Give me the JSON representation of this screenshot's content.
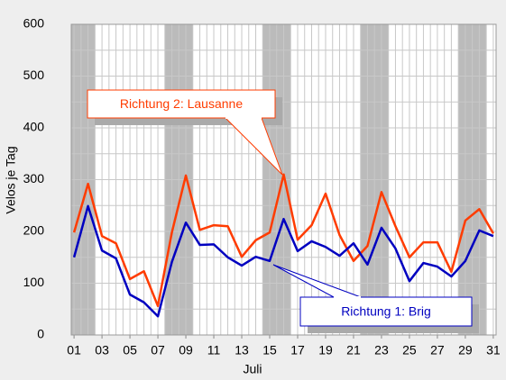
{
  "chart_data": {
    "type": "line",
    "x_label": "Juli",
    "y_label": "Velos je Tag",
    "x": [
      1,
      2,
      3,
      4,
      5,
      6,
      7,
      8,
      9,
      10,
      11,
      12,
      13,
      14,
      15,
      16,
      17,
      18,
      19,
      20,
      21,
      22,
      23,
      24,
      25,
      26,
      27,
      28,
      29,
      30,
      31
    ],
    "series": [
      {
        "name": "Richtung 2: Lausanne",
        "color": "#ff3c00",
        "values": [
          198,
          292,
          191,
          177,
          108,
          123,
          56,
          198,
          308,
          203,
          212,
          210,
          151,
          183,
          198,
          310,
          184,
          212,
          273,
          193,
          143,
          172,
          276,
          210,
          150,
          179,
          179,
          122,
          221,
          243,
          196
        ]
      },
      {
        "name": "Richtung 1: Brig",
        "color": "#0000c0",
        "values": [
          150,
          249,
          163,
          148,
          78,
          63,
          36,
          141,
          217,
          174,
          175,
          150,
          134,
          151,
          143,
          224,
          162,
          181,
          170,
          153,
          177,
          136,
          207,
          167,
          104,
          139,
          132,
          113,
          143,
          202,
          191
        ]
      }
    ],
    "shaded_ranges": [
      [
        0.8,
        2.5
      ],
      [
        7.5,
        9.5
      ],
      [
        14.5,
        16.5
      ],
      [
        21.5,
        23.5
      ],
      [
        28.5,
        30.5
      ]
    ],
    "xlim": [
      0.8,
      31.2
    ],
    "xticks": [
      {
        "value": 1,
        "label": "01"
      },
      {
        "value": 3,
        "label": "03"
      },
      {
        "value": 5,
        "label": "05"
      },
      {
        "value": 7,
        "label": "07"
      },
      {
        "value": 9,
        "label": "09"
      },
      11,
      13,
      15,
      17,
      19,
      21,
      23,
      25,
      27,
      29,
      31
    ],
    "ylim": [
      0,
      600
    ],
    "yticks": [
      0,
      100,
      200,
      300,
      400,
      500,
      600
    ],
    "grid": true
  }
}
